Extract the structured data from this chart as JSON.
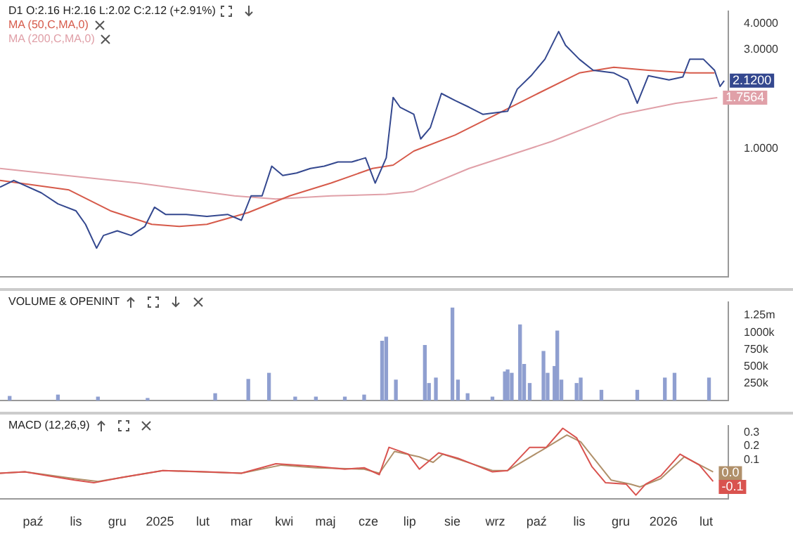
{
  "chart_data": [
    {
      "type": "line",
      "title": "D1 O:2.16 H:2.16 L:2.02 C:2.12 (+2.91%)",
      "log": true,
      "legend": "top left",
      "tick_labels": "y",
      "xlim": [
        "2024-09-07",
        "2026-02-17"
      ],
      "ylim": [
        0.24,
        4.6
      ],
      "yticks": [
        {
          "value": 1,
          "label": "1.0000"
        },
        {
          "value": 3,
          "label": "3.0000"
        },
        {
          "value": 4,
          "label": "4.0000"
        }
      ],
      "annotations": [
        {
          "text": "2.1200",
          "x": "2026-02-14",
          "y": 2.12
        },
        {
          "text": "1.7564",
          "x": "2026-02-09",
          "y": 1.7564
        }
      ],
      "series": [
        {
          "color": "#34488f",
          "x": [
            "2024-09-07",
            "2024-09-17",
            "2024-10-07",
            "2024-10-19",
            "2024-11-01",
            "2024-11-08",
            "2024-11-16",
            "2024-11-21",
            "2024-12-01",
            "2024-12-11",
            "2024-12-21",
            "2024-12-28",
            "2025-01-05",
            "2025-01-20",
            "2025-02-04",
            "2025-02-19",
            "2025-03-01",
            "2025-03-08",
            "2025-03-16",
            "2025-03-23",
            "2025-03-31",
            "2025-04-10",
            "2025-04-20",
            "2025-04-30",
            "2025-05-10",
            "2025-05-20",
            "2025-05-30",
            "2025-06-06",
            "2025-06-14",
            "2025-06-19",
            "2025-06-24",
            "2025-07-04",
            "2025-07-09",
            "2025-07-16",
            "2025-07-24",
            "2025-08-03",
            "2025-08-13",
            "2025-08-23",
            "2025-09-10",
            "2025-09-17",
            "2025-09-27",
            "2025-10-07",
            "2025-10-17",
            "2025-10-22",
            "2025-11-01",
            "2025-11-11",
            "2025-11-26",
            "2025-12-06",
            "2025-12-13",
            "2025-12-21",
            "2026-01-05",
            "2026-01-15",
            "2026-01-20",
            "2026-01-30",
            "2026-02-07",
            "2026-02-11",
            "2026-02-14"
          ],
          "values": [
            0.65,
            0.7,
            0.61,
            0.54,
            0.5,
            0.43,
            0.33,
            0.38,
            0.4,
            0.38,
            0.42,
            0.52,
            0.48,
            0.48,
            0.47,
            0.48,
            0.45,
            0.59,
            0.59,
            0.82,
            0.74,
            0.76,
            0.8,
            0.82,
            0.86,
            0.86,
            0.9,
            0.68,
            0.9,
            1.76,
            1.58,
            1.46,
            1.11,
            1.26,
            1.84,
            1.7,
            1.58,
            1.46,
            1.51,
            1.93,
            2.24,
            2.69,
            3.66,
            3.14,
            2.69,
            2.38,
            2.31,
            2.14,
            1.65,
            2.24,
            2.14,
            2.21,
            2.69,
            2.69,
            2.38,
            1.99,
            2.12
          ]
        },
        {
          "name": "MA (50,C,MA,0)",
          "color": "#d65a4a",
          "x": [
            "2024-09-07",
            "2024-10-27",
            "2024-11-26",
            "2024-12-26",
            "2025-01-15",
            "2025-02-04",
            "2025-03-06",
            "2025-04-05",
            "2025-05-05",
            "2025-06-04",
            "2025-06-19",
            "2025-07-04",
            "2025-08-03",
            "2025-09-02",
            "2025-10-02",
            "2025-11-01",
            "2025-11-26",
            "2025-12-21",
            "2026-01-20",
            "2026-02-07"
          ],
          "values": [
            0.7,
            0.63,
            0.5,
            0.43,
            0.42,
            0.43,
            0.49,
            0.59,
            0.68,
            0.8,
            0.83,
            0.97,
            1.16,
            1.46,
            1.84,
            2.31,
            2.46,
            2.38,
            2.31,
            2.31
          ]
        },
        {
          "name": "MA (200,C,MA,0)",
          "color": "#e0a0a8",
          "x": [
            "2024-09-07",
            "2024-12-16",
            "2025-02-24",
            "2025-03-26",
            "2025-05-05",
            "2025-06-14",
            "2025-07-04",
            "2025-08-13",
            "2025-10-12",
            "2025-12-01",
            "2026-01-10",
            "2026-02-09"
          ],
          "values": [
            0.8,
            0.68,
            0.59,
            0.57,
            0.59,
            0.6,
            0.62,
            0.8,
            1.08,
            1.46,
            1.65,
            1.7564
          ]
        }
      ]
    },
    {
      "type": "bar",
      "title": "VOLUME & OPENINT",
      "tick_labels": "y",
      "xlim": [
        "2024-09-07",
        "2026-02-17"
      ],
      "ylim": [
        0,
        1450000
      ],
      "color": "#8f9fd0",
      "yticks": [
        {
          "value": 250000,
          "label": "250k"
        },
        {
          "value": 500000,
          "label": "500k"
        },
        {
          "value": 750000,
          "label": "750k"
        },
        {
          "value": 1000000,
          "label": "1000k"
        },
        {
          "value": 1250000,
          "label": "1.25m"
        }
      ],
      "x": [
        "2024-09-14",
        "2024-10-19",
        "2024-11-17",
        "2024-12-23",
        "2025-02-10",
        "2025-03-06",
        "2025-03-21",
        "2025-04-09",
        "2025-04-24",
        "2025-05-15",
        "2025-05-29",
        "2025-06-11",
        "2025-06-14",
        "2025-06-21",
        "2025-07-12",
        "2025-07-15",
        "2025-07-20",
        "2025-08-01",
        "2025-08-05",
        "2025-08-12",
        "2025-08-30",
        "2025-09-08",
        "2025-09-10",
        "2025-09-13",
        "2025-09-19",
        "2025-09-22",
        "2025-09-26",
        "2025-10-06",
        "2025-10-09",
        "2025-10-14",
        "2025-10-16",
        "2025-10-19",
        "2025-10-30",
        "2025-11-02",
        "2025-11-17",
        "2025-12-13",
        "2026-01-02",
        "2026-01-09",
        "2026-02-03"
      ],
      "values": [
        60000,
        80000,
        50000,
        30000,
        100000,
        310000,
        400000,
        50000,
        50000,
        50000,
        80000,
        870000,
        930000,
        300000,
        810000,
        250000,
        330000,
        1360000,
        300000,
        100000,
        50000,
        420000,
        450000,
        400000,
        1110000,
        530000,
        250000,
        720000,
        400000,
        500000,
        1020000,
        300000,
        250000,
        330000,
        150000,
        150000,
        330000,
        400000,
        330000
      ]
    },
    {
      "type": "line",
      "title": "MACD (12,26,9)",
      "xlim": [
        "2024-09-07",
        "2026-02-17"
      ],
      "ylim": [
        -0.19,
        0.35
      ],
      "xticks": [
        {
          "value": "2024-10-01",
          "label": "paź"
        },
        {
          "value": "2024-11-01",
          "label": "lis"
        },
        {
          "value": "2024-12-01",
          "label": "gru"
        },
        {
          "value": "2025-01-01",
          "label": "2025"
        },
        {
          "value": "2025-02-01",
          "label": "lut"
        },
        {
          "value": "2025-03-01",
          "label": "mar"
        },
        {
          "value": "2025-04-01",
          "label": "kwi"
        },
        {
          "value": "2025-05-01",
          "label": "maj"
        },
        {
          "value": "2025-06-01",
          "label": "cze"
        },
        {
          "value": "2025-07-01",
          "label": "lip"
        },
        {
          "value": "2025-08-01",
          "label": "sie"
        },
        {
          "value": "2025-09-01",
          "label": "wrz"
        },
        {
          "value": "2025-10-01",
          "label": "paź"
        },
        {
          "value": "2025-11-01",
          "label": "lis"
        },
        {
          "value": "2025-12-01",
          "label": "gru"
        },
        {
          "value": "2026-01-01",
          "label": "2026"
        },
        {
          "value": "2026-02-01",
          "label": "lut"
        }
      ],
      "yticks": [
        0.1,
        0.2,
        0.3
      ],
      "annotations": [
        {
          "text": "0.0",
          "x": "2026-02-06",
          "y": 0.0
        },
        {
          "text": "-0.1",
          "x": "2026-02-06",
          "y": -0.1
        }
      ],
      "series": [
        {
          "color": "#d9534f",
          "x": [
            "2024-09-07",
            "2024-09-25",
            "2024-10-13",
            "2024-10-31",
            "2024-11-14",
            "2024-12-05",
            "2025-01-03",
            "2025-02-04",
            "2025-03-01",
            "2025-03-26",
            "2025-04-24",
            "2025-05-15",
            "2025-05-29",
            "2025-06-09",
            "2025-06-16",
            "2025-06-30",
            "2025-07-08",
            "2025-07-22",
            "2025-08-05",
            "2025-08-30",
            "2025-09-10",
            "2025-09-26",
            "2025-10-08",
            "2025-10-20",
            "2025-10-30",
            "2025-11-10",
            "2025-11-20",
            "2025-12-05",
            "2025-12-12",
            "2025-12-19",
            "2025-12-30",
            "2026-01-13",
            "2026-01-27",
            "2026-02-06"
          ],
          "values": [
            0.0,
            0.01,
            -0.02,
            -0.05,
            -0.07,
            -0.03,
            0.02,
            0.01,
            0.0,
            0.07,
            0.05,
            0.03,
            0.04,
            -0.01,
            0.19,
            0.14,
            0.03,
            0.15,
            0.11,
            0.01,
            0.02,
            0.19,
            0.19,
            0.33,
            0.26,
            0.05,
            -0.07,
            -0.08,
            -0.16,
            -0.08,
            -0.02,
            0.14,
            0.06,
            -0.06
          ]
        },
        {
          "color": "#b0906a",
          "x": [
            "2024-09-07",
            "2024-09-25",
            "2024-10-31",
            "2024-11-17",
            "2025-01-03",
            "2025-03-01",
            "2025-03-30",
            "2025-04-24",
            "2025-05-29",
            "2025-06-09",
            "2025-06-20",
            "2025-07-08",
            "2025-07-18",
            "2025-07-25",
            "2025-08-30",
            "2025-09-10",
            "2025-10-05",
            "2025-10-23",
            "2025-11-02",
            "2025-11-24",
            "2025-12-08",
            "2025-12-15",
            "2025-12-30",
            "2026-01-16",
            "2026-02-06"
          ],
          "values": [
            0.0,
            0.01,
            -0.04,
            -0.06,
            0.02,
            0.0,
            0.06,
            0.04,
            0.03,
            0.0,
            0.16,
            0.12,
            0.08,
            0.14,
            0.02,
            0.02,
            0.17,
            0.28,
            0.23,
            -0.05,
            -0.08,
            -0.1,
            -0.04,
            0.12,
            0.01
          ]
        }
      ]
    }
  ]
}
